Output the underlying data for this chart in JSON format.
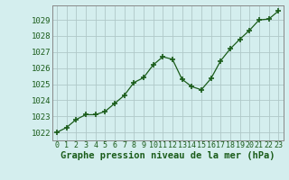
{
  "x": [
    0,
    1,
    2,
    3,
    4,
    5,
    6,
    7,
    8,
    9,
    10,
    11,
    12,
    13,
    14,
    15,
    16,
    17,
    18,
    19,
    20,
    21,
    22,
    23
  ],
  "y": [
    1022.0,
    1022.3,
    1022.8,
    1023.1,
    1023.1,
    1023.3,
    1023.8,
    1024.3,
    1025.1,
    1025.4,
    1026.2,
    1026.7,
    1026.55,
    1025.3,
    1024.85,
    1024.65,
    1025.35,
    1026.45,
    1027.2,
    1027.8,
    1028.35,
    1029.0,
    1029.05,
    1029.55
  ],
  "xlabel": "Graphe pression niveau de la mer (hPa)",
  "ylim": [
    1021.5,
    1029.9
  ],
  "xlim": [
    -0.5,
    23.5
  ],
  "yticks": [
    1022,
    1023,
    1024,
    1025,
    1026,
    1027,
    1028,
    1029
  ],
  "xticks": [
    0,
    1,
    2,
    3,
    4,
    5,
    6,
    7,
    8,
    9,
    10,
    11,
    12,
    13,
    14,
    15,
    16,
    17,
    18,
    19,
    20,
    21,
    22,
    23
  ],
  "line_color": "#1a5c1a",
  "marker_color": "#1a5c1a",
  "bg_color": "#d4eeee",
  "grid_color": "#b0c8c8",
  "xlabel_color": "#1a5c1a",
  "xlabel_fontsize": 7.5,
  "tick_fontsize": 6.0,
  "ytick_fontsize": 6.5
}
